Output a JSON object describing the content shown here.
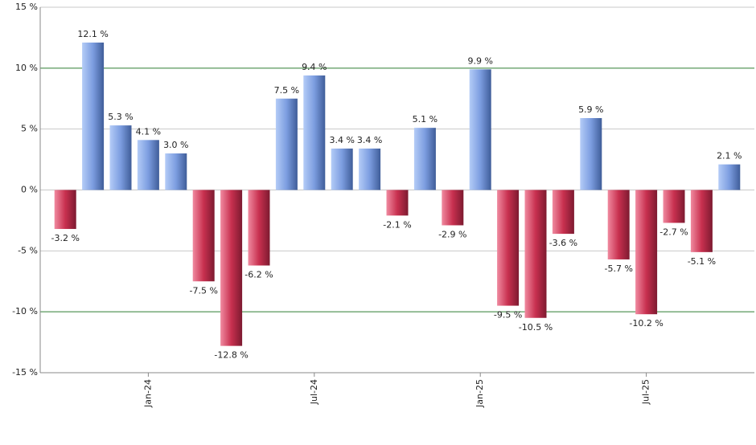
{
  "chart_data": {
    "type": "bar",
    "categories": [
      null,
      null,
      null,
      "Jan-24",
      null,
      null,
      null,
      null,
      null,
      "Jul-24",
      null,
      null,
      null,
      null,
      null,
      "Jan-25",
      null,
      null,
      null,
      null,
      null,
      "Jul-25",
      null,
      null,
      null
    ],
    "values": [
      -3.2,
      12.1,
      5.3,
      4.1,
      3.0,
      -7.5,
      -12.8,
      -6.2,
      7.5,
      9.4,
      3.4,
      3.4,
      -2.1,
      5.1,
      -2.9,
      9.9,
      -9.5,
      -10.5,
      -3.6,
      5.9,
      -5.7,
      -10.2,
      -2.7,
      -5.1,
      2.1
    ],
    "value_labels": [
      "-3.2 %",
      "12.1 %",
      "5.3 %",
      "4.1 %",
      "3.0 %",
      "-7.5 %",
      "-12.8 %",
      "-6.2 %",
      "7.5 %",
      "9.4 %",
      "3.4 %",
      "3.4 %",
      "-2.1 %",
      "5.1 %",
      "-2.9 %",
      "9.9 %",
      "-9.5 %",
      "-10.5 %",
      "-3.6 %",
      "5.9 %",
      "-5.7 %",
      "-10.2 %",
      "-2.7 %",
      "-5.1 %",
      "2.1 %"
    ],
    "positive_color": "#6f94dd",
    "negative_color": "#c8304f",
    "ylim": [
      -15,
      15
    ],
    "yticks": [
      {
        "value": -15,
        "label": "-15 %"
      },
      {
        "value": -10,
        "label": "-10 %"
      },
      {
        "value": -5,
        "label": "-5 %"
      },
      {
        "value": 0,
        "label": "0 %"
      },
      {
        "value": 5,
        "label": "5 %"
      },
      {
        "value": 10,
        "label": "10 %"
      },
      {
        "value": 15,
        "label": "15 %"
      }
    ],
    "grid": true,
    "grid_color": "#c8c8c8",
    "accent_grid": {
      "values": [
        -10,
        10
      ],
      "color": "#2e7d32"
    }
  }
}
